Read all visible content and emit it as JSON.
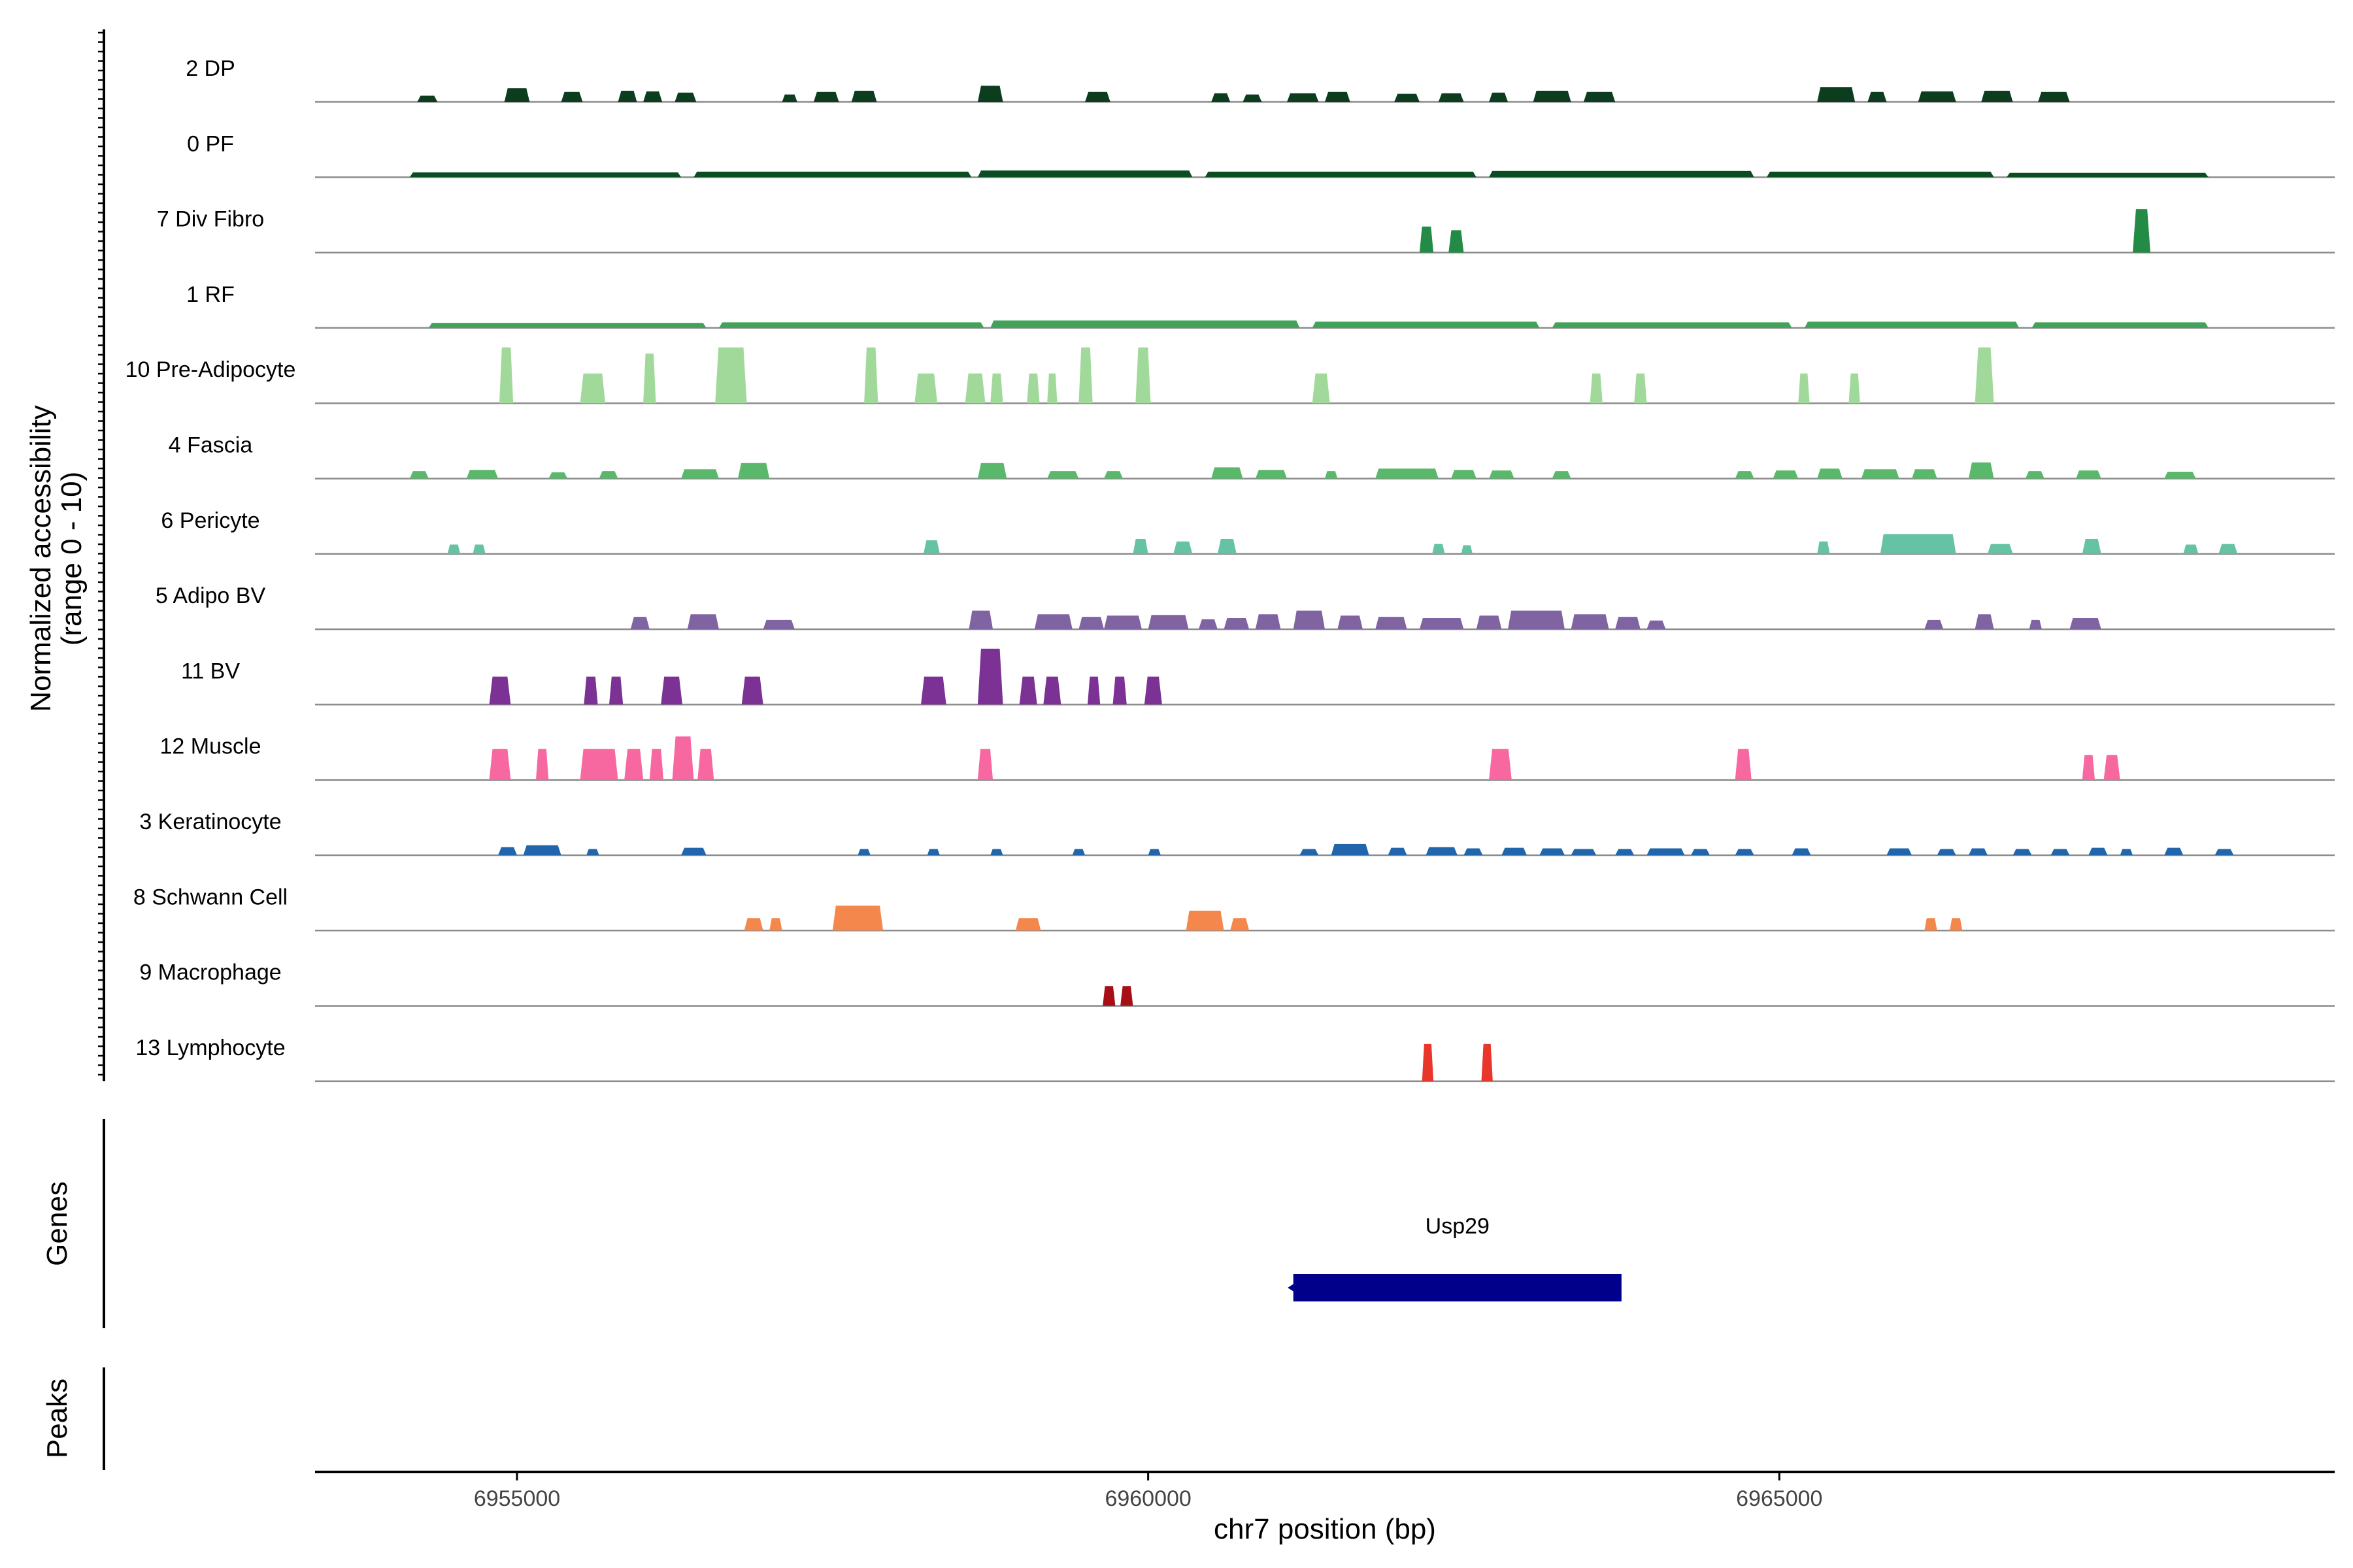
{
  "chart_data": {
    "type": "area",
    "title": "",
    "y_axis_label_line1": "Normalized accessibility",
    "y_axis_label_line2": "(range 0 - 10)",
    "y_range": [
      0,
      10
    ],
    "x_axis_label": "chr7 position (bp)",
    "x_range": [
      6953400,
      6969400
    ],
    "x_ticks": [
      6955000,
      6960000,
      6965000
    ],
    "x_tick_labels": [
      "6955000",
      "6960000",
      "6965000"
    ],
    "genes_label": "Genes",
    "peaks_label": "Peaks",
    "gene": {
      "name": "Usp29",
      "start": 6961150,
      "end": 6963750,
      "color": "#00008b"
    },
    "tracks": [
      {
        "name": "2 DP",
        "color": "#0b3d1e",
        "peaks": [
          [
            6954210,
            6954370,
            1.0
          ],
          [
            6954900,
            6955100,
            2.2
          ],
          [
            6955350,
            6955520,
            1.6
          ],
          [
            6955800,
            6955950,
            1.8
          ],
          [
            6956000,
            6956150,
            1.7
          ],
          [
            6956250,
            6956420,
            1.5
          ],
          [
            6957100,
            6957220,
            1.2
          ],
          [
            6957350,
            6957550,
            1.6
          ],
          [
            6957650,
            6957850,
            1.8
          ],
          [
            6958650,
            6958850,
            2.6
          ],
          [
            6959500,
            6959700,
            1.6
          ],
          [
            6960500,
            6960650,
            1.4
          ],
          [
            6960750,
            6960900,
            1.2
          ],
          [
            6961100,
            6961350,
            1.4
          ],
          [
            6961400,
            6961600,
            1.6
          ],
          [
            6961950,
            6962150,
            1.3
          ],
          [
            6962300,
            6962500,
            1.4
          ],
          [
            6962700,
            6962850,
            1.5
          ],
          [
            6963050,
            6963350,
            1.8
          ],
          [
            6963450,
            6963700,
            1.6
          ],
          [
            6965300,
            6965600,
            2.4
          ],
          [
            6965700,
            6965850,
            1.6
          ],
          [
            6966100,
            6966400,
            1.7
          ],
          [
            6966600,
            6966850,
            1.8
          ],
          [
            6967050,
            6967300,
            1.6
          ]
        ]
      },
      {
        "name": "0 PF",
        "color": "#0b4d22",
        "peaks": [
          [
            6954150,
            6956300,
            0.8
          ],
          [
            6956400,
            6958600,
            0.9
          ],
          [
            6958650,
            6960350,
            1.1
          ],
          [
            6960450,
            6962600,
            0.9
          ],
          [
            6962700,
            6964800,
            1.0
          ],
          [
            6964900,
            6966700,
            0.9
          ],
          [
            6966800,
            6968400,
            0.7
          ]
        ]
      },
      {
        "name": "7 Div Fibro",
        "color": "#238b45",
        "peaks": [
          [
            6962150,
            6962260,
            4.2
          ],
          [
            6962380,
            6962500,
            3.6
          ],
          [
            6967800,
            6967940,
            7.0
          ]
        ]
      },
      {
        "name": "1 RF",
        "color": "#41a35a",
        "peaks": [
          [
            6954300,
            6956500,
            0.8
          ],
          [
            6956600,
            6958700,
            0.9
          ],
          [
            6958750,
            6961200,
            1.2
          ],
          [
            6961300,
            6963100,
            1.0
          ],
          [
            6963200,
            6965100,
            0.9
          ],
          [
            6965200,
            6966900,
            1.0
          ],
          [
            6967000,
            6968400,
            0.9
          ]
        ]
      },
      {
        "name": "10 Pre-Adipocyte",
        "color": "#a1d99b",
        "peaks": [
          [
            6954860,
            6954970,
            9.0
          ],
          [
            6955500,
            6955700,
            4.8
          ],
          [
            6956000,
            6956100,
            8.0
          ],
          [
            6956570,
            6956820,
            9.0
          ],
          [
            6957750,
            6957860,
            9.0
          ],
          [
            6958150,
            6958330,
            4.8
          ],
          [
            6958550,
            6958710,
            4.8
          ],
          [
            6958750,
            6958850,
            4.8
          ],
          [
            6959040,
            6959140,
            4.8
          ],
          [
            6959200,
            6959280,
            4.8
          ],
          [
            6959450,
            6959560,
            9.0
          ],
          [
            6959900,
            6960020,
            9.0
          ],
          [
            6961300,
            6961440,
            4.8
          ],
          [
            6963500,
            6963600,
            4.8
          ],
          [
            6963850,
            6963950,
            4.8
          ],
          [
            6965150,
            6965240,
            4.8
          ],
          [
            6965550,
            6965640,
            4.8
          ],
          [
            6966550,
            6966700,
            9.0
          ]
        ]
      },
      {
        "name": "4 Fascia",
        "color": "#5ab86b",
        "peaks": [
          [
            6954150,
            6954300,
            1.2
          ],
          [
            6954600,
            6954850,
            1.4
          ],
          [
            6955250,
            6955400,
            1.0
          ],
          [
            6955650,
            6955800,
            1.2
          ],
          [
            6956300,
            6956600,
            1.5
          ],
          [
            6956750,
            6957000,
            2.5
          ],
          [
            6958650,
            6958880,
            2.5
          ],
          [
            6959200,
            6959450,
            1.2
          ],
          [
            6959650,
            6959800,
            1.2
          ],
          [
            6960500,
            6960750,
            1.8
          ],
          [
            6960850,
            6961100,
            1.4
          ],
          [
            6961400,
            6961500,
            1.2
          ],
          [
            6961800,
            6962300,
            1.6
          ],
          [
            6962400,
            6962600,
            1.4
          ],
          [
            6962700,
            6962900,
            1.3
          ],
          [
            6963200,
            6963350,
            1.2
          ],
          [
            6964650,
            6964800,
            1.2
          ],
          [
            6964950,
            6965150,
            1.3
          ],
          [
            6965300,
            6965500,
            1.6
          ],
          [
            6965650,
            6965950,
            1.5
          ],
          [
            6966050,
            6966250,
            1.5
          ],
          [
            6966500,
            6966700,
            2.6
          ],
          [
            6966950,
            6967100,
            1.2
          ],
          [
            6967350,
            6967550,
            1.3
          ],
          [
            6968050,
            6968300,
            1.1
          ]
        ]
      },
      {
        "name": "6 Pericyte",
        "color": "#66c2a5",
        "peaks": [
          [
            6954450,
            6954550,
            1.5
          ],
          [
            6954650,
            6954750,
            1.5
          ],
          [
            6958220,
            6958350,
            2.2
          ],
          [
            6959880,
            6960000,
            2.4
          ],
          [
            6960200,
            6960350,
            2.0
          ],
          [
            6960550,
            6960700,
            2.4
          ],
          [
            6962250,
            6962350,
            1.6
          ],
          [
            6962480,
            6962570,
            1.4
          ],
          [
            6965300,
            6965400,
            2.0
          ],
          [
            6965800,
            6966400,
            3.2
          ],
          [
            6966650,
            6966850,
            1.6
          ],
          [
            6967400,
            6967550,
            2.4
          ],
          [
            6968200,
            6968320,
            1.5
          ],
          [
            6968480,
            6968630,
            1.6
          ]
        ]
      },
      {
        "name": "5 Adipo BV",
        "color": "#8064a2",
        "peaks": [
          [
            6955900,
            6956050,
            2.0
          ],
          [
            6956350,
            6956600,
            2.4
          ],
          [
            6956950,
            6957200,
            1.5
          ],
          [
            6958580,
            6958770,
            3.0
          ],
          [
            6959100,
            6959400,
            2.4
          ],
          [
            6959450,
            6959650,
            2.0
          ],
          [
            6959650,
            6959950,
            2.2
          ],
          [
            6960000,
            6960320,
            2.3
          ],
          [
            6960400,
            6960550,
            1.6
          ],
          [
            6960600,
            6960800,
            1.8
          ],
          [
            6960850,
            6961050,
            2.4
          ],
          [
            6961150,
            6961400,
            3.0
          ],
          [
            6961500,
            6961700,
            2.2
          ],
          [
            6961800,
            6962050,
            2.0
          ],
          [
            6962150,
            6962500,
            1.8
          ],
          [
            6962600,
            6962800,
            2.2
          ],
          [
            6962850,
            6963300,
            3.0
          ],
          [
            6963350,
            6963650,
            2.4
          ],
          [
            6963700,
            6963900,
            2.0
          ],
          [
            6963950,
            6964100,
            1.4
          ],
          [
            6966150,
            6966300,
            1.5
          ],
          [
            6966550,
            6966700,
            2.4
          ],
          [
            6966980,
            6967080,
            1.5
          ],
          [
            6967300,
            6967550,
            1.8
          ]
        ]
      },
      {
        "name": "11 BV",
        "color": "#7b3294",
        "peaks": [
          [
            6954780,
            6954950,
            4.5
          ],
          [
            6955530,
            6955640,
            4.5
          ],
          [
            6955730,
            6955840,
            4.5
          ],
          [
            6956140,
            6956310,
            4.5
          ],
          [
            6956780,
            6956950,
            4.5
          ],
          [
            6958200,
            6958400,
            4.5
          ],
          [
            6958650,
            6958850,
            9.0
          ],
          [
            6958980,
            6959120,
            4.5
          ],
          [
            6959170,
            6959310,
            4.5
          ],
          [
            6959520,
            6959620,
            4.5
          ],
          [
            6959720,
            6959830,
            4.5
          ],
          [
            6959970,
            6960110,
            4.5
          ]
        ]
      },
      {
        "name": "12 Muscle",
        "color": "#f768a1",
        "peaks": [
          [
            6954780,
            6954950,
            5.0
          ],
          [
            6955150,
            6955250,
            5.0
          ],
          [
            6955500,
            6955800,
            5.0
          ],
          [
            6955850,
            6956000,
            5.0
          ],
          [
            6956050,
            6956160,
            5.0
          ],
          [
            6956230,
            6956400,
            7.0
          ],
          [
            6956430,
            6956560,
            5.0
          ],
          [
            6958650,
            6958770,
            5.0
          ],
          [
            6962700,
            6962880,
            5.0
          ],
          [
            6964650,
            6964780,
            5.0
          ],
          [
            6967400,
            6967500,
            4.0
          ],
          [
            6967570,
            6967700,
            4.0
          ]
        ]
      },
      {
        "name": "3 Keratinocyte",
        "color": "#2166ac",
        "peaks": [
          [
            6954850,
            6955000,
            1.3
          ],
          [
            6955050,
            6955350,
            1.6
          ],
          [
            6955550,
            6955650,
            1.0
          ],
          [
            6956300,
            6956500,
            1.2
          ],
          [
            6957700,
            6957800,
            1.0
          ],
          [
            6958250,
            6958350,
            1.0
          ],
          [
            6958750,
            6958850,
            1.0
          ],
          [
            6959400,
            6959500,
            1.0
          ],
          [
            6960000,
            6960100,
            1.0
          ],
          [
            6961200,
            6961350,
            1.0
          ],
          [
            6961450,
            6961750,
            1.8
          ],
          [
            6961900,
            6962050,
            1.2
          ],
          [
            6962200,
            6962450,
            1.3
          ],
          [
            6962500,
            6962650,
            1.1
          ],
          [
            6962800,
            6963000,
            1.2
          ],
          [
            6963100,
            6963300,
            1.1
          ],
          [
            6963350,
            6963550,
            1.0
          ],
          [
            6963700,
            6963850,
            1.0
          ],
          [
            6963950,
            6964250,
            1.1
          ],
          [
            6964300,
            6964450,
            1.0
          ],
          [
            6964650,
            6964800,
            1.0
          ],
          [
            6965100,
            6965250,
            1.1
          ],
          [
            6965850,
            6966050,
            1.1
          ],
          [
            6966250,
            6966400,
            1.0
          ],
          [
            6966500,
            6966650,
            1.1
          ],
          [
            6966850,
            6967000,
            1.0
          ],
          [
            6967150,
            6967300,
            1.0
          ],
          [
            6967450,
            6967600,
            1.2
          ],
          [
            6967700,
            6967800,
            1.0
          ],
          [
            6968050,
            6968200,
            1.2
          ],
          [
            6968450,
            6968600,
            1.0
          ]
        ]
      },
      {
        "name": "8 Schwann Cell",
        "color": "#f4874b",
        "peaks": [
          [
            6956800,
            6956950,
            2.0
          ],
          [
            6957000,
            6957100,
            2.0
          ],
          [
            6957500,
            6957900,
            4.0
          ],
          [
            6958950,
            6959150,
            2.0
          ],
          [
            6960300,
            6960600,
            3.2
          ],
          [
            6960650,
            6960800,
            2.0
          ],
          [
            6966150,
            6966250,
            2.0
          ],
          [
            6966350,
            6966450,
            2.0
          ]
        ]
      },
      {
        "name": "9 Macrophage",
        "color": "#a50f15",
        "peaks": [
          [
            6959640,
            6959740,
            3.2
          ],
          [
            6959780,
            6959880,
            3.2
          ]
        ]
      },
      {
        "name": "13 Lymphocyte",
        "color": "#e8362a",
        "peaks": [
          [
            6962170,
            6962260,
            6.0
          ],
          [
            6962640,
            6962730,
            6.0
          ]
        ]
      }
    ]
  }
}
